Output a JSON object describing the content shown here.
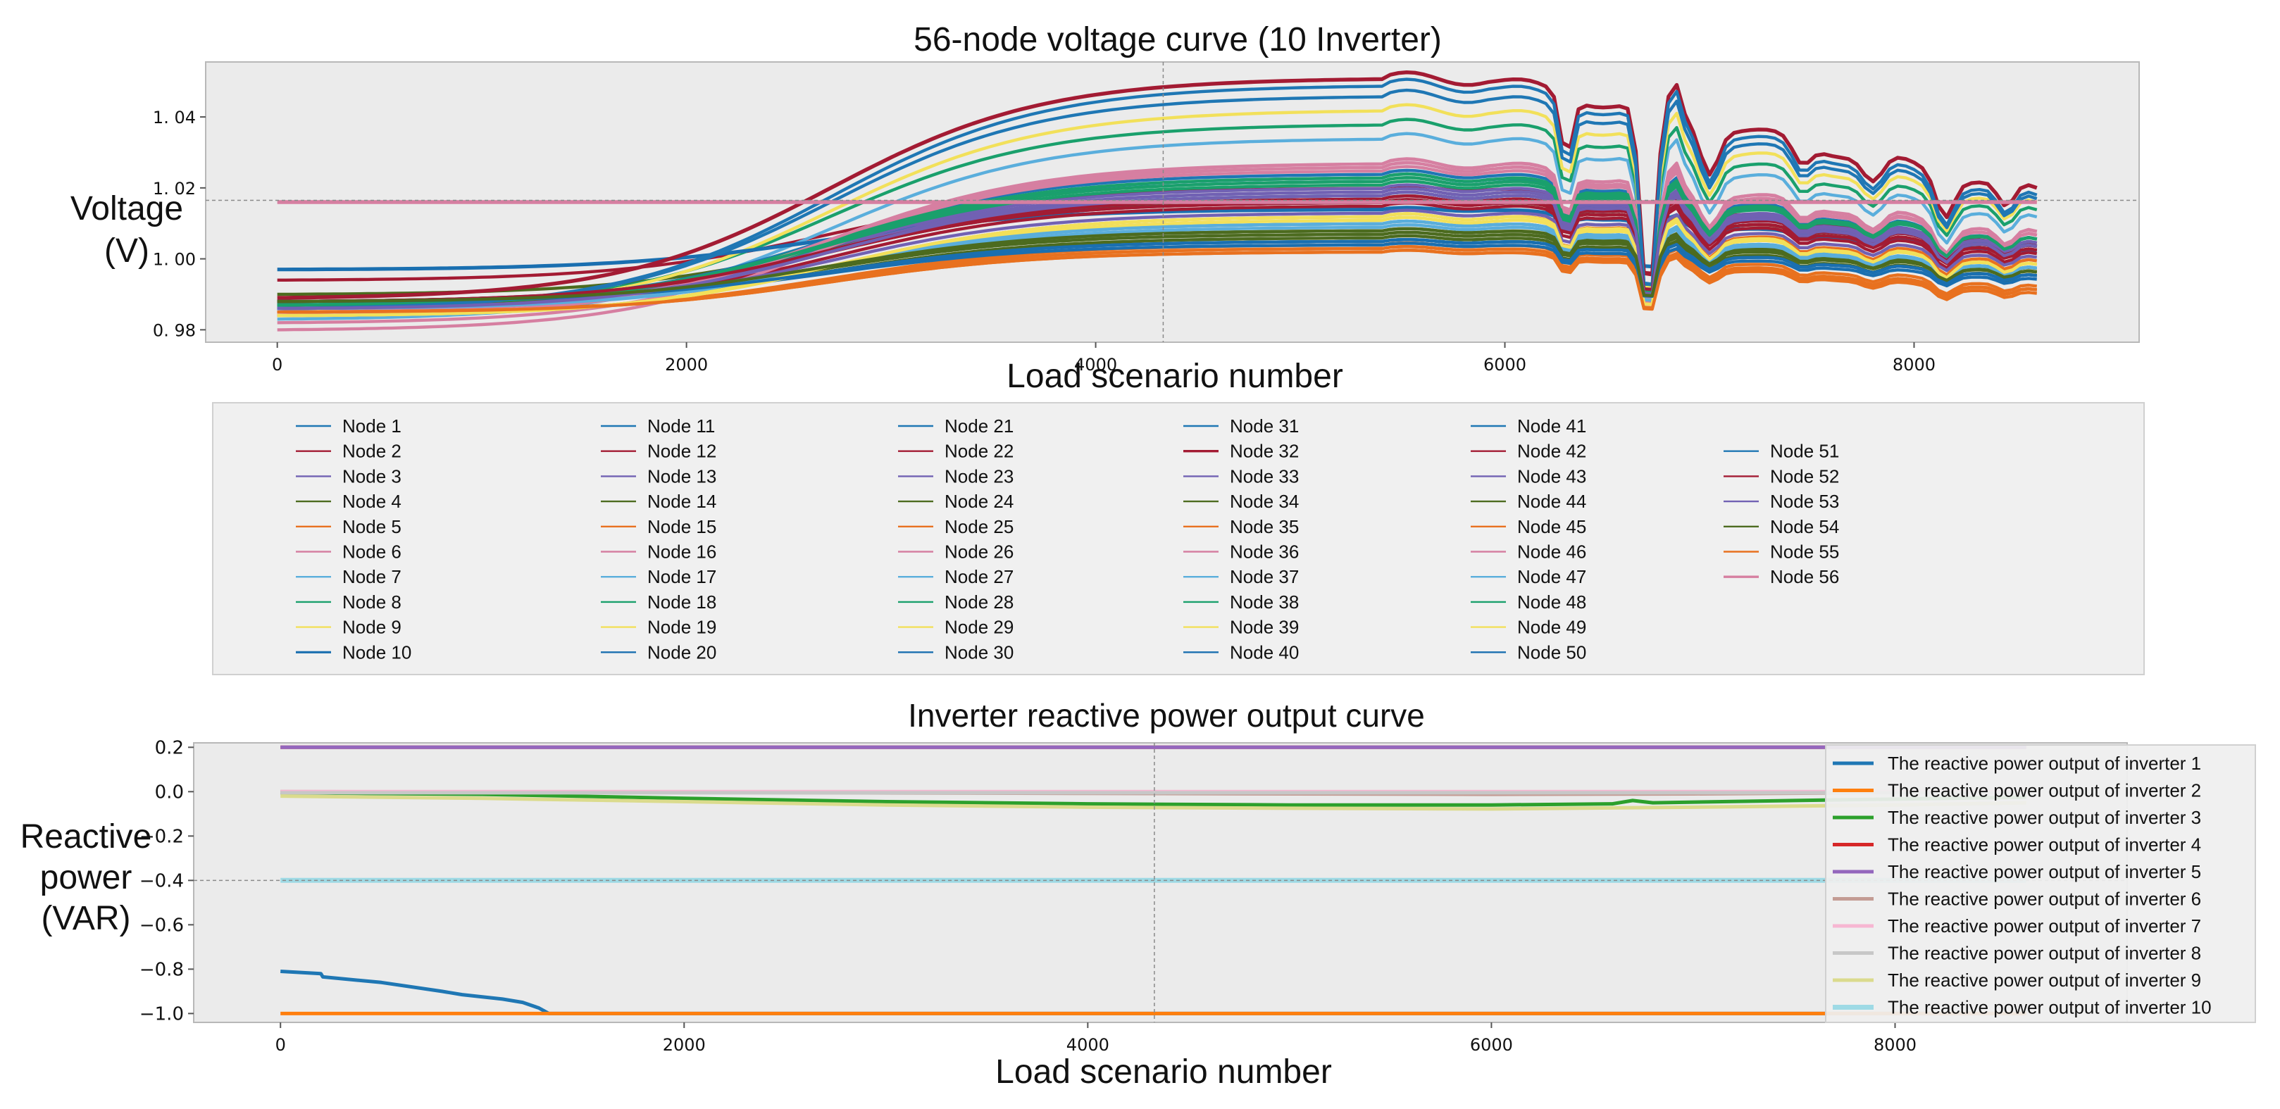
{
  "chart_data": [
    {
      "type": "line",
      "title": "56-node voltage curve (10 Inverter)",
      "xlabel": "Load scenario number",
      "ylabel": "Voltage (V)",
      "ylabel_lines": [
        "Voltage",
        "(V)"
      ],
      "xlim": [
        -350,
        9100
      ],
      "ylim": [
        0.9765,
        1.0555
      ],
      "xticks": [
        0,
        2000,
        4000,
        6000,
        8000
      ],
      "xtick_labels": [
        "0",
        "2000",
        "4000",
        "6000",
        "8000"
      ],
      "yticks": [
        0.98,
        1.0,
        1.02,
        1.04
      ],
      "ytick_labels": [
        "0. 98",
        "1. 00",
        "1. 02",
        "1. 04"
      ],
      "crosshair": {
        "x": 4330,
        "y": 1.0165
      },
      "grid": false,
      "legend_position": "below-plot",
      "legend_columns": 6,
      "x": [
        0,
        500,
        1000,
        1500,
        2000,
        2500,
        3000,
        3500,
        4000,
        4500,
        5000,
        5500,
        5800,
        6000,
        6200,
        6300,
        6500,
        6700,
        6780,
        6900,
        7000,
        7200,
        7400,
        7600,
        7800,
        8000,
        8150,
        8300,
        8450,
        8600
      ],
      "series": [
        {
          "name": "Node 1",
          "v0": 0.986,
          "peak": 1.023,
          "end": 1.003,
          "color": "#1f77b4",
          "width": 2.4
        },
        {
          "name": "Node 2",
          "v0": 0.994,
          "peak": 1.02,
          "end": 1.004,
          "color": "#a31b33",
          "width": 2.4
        },
        {
          "name": "Node 3",
          "v0": 0.987,
          "peak": 1.019,
          "end": 1.003,
          "color": "#7161b3",
          "width": 2.4
        },
        {
          "name": "Node 4",
          "v0": 0.99,
          "peak": 1.016,
          "end": 1.002,
          "color": "#4c6b1f",
          "width": 2.4
        },
        {
          "name": "Node 5",
          "v0": 0.984,
          "peak": 1.012,
          "end": 0.999,
          "color": "#e8711f",
          "width": 2.4
        },
        {
          "name": "Node 6",
          "v0": 0.982,
          "peak": 1.026,
          "end": 1.006,
          "color": "#d67fa1",
          "width": 2.4
        },
        {
          "name": "Node 7",
          "v0": 0.983,
          "peak": 1.034,
          "end": 1.011,
          "color": "#5aaedc",
          "width": 2.4
        },
        {
          "name": "Node 8",
          "v0": 0.986,
          "peak": 1.038,
          "end": 1.013,
          "color": "#1aa06c",
          "width": 2.4
        },
        {
          "name": "Node 9",
          "v0": 0.985,
          "peak": 1.042,
          "end": 1.015,
          "color": "#f2e05a",
          "width": 2.4
        },
        {
          "name": "Node 10",
          "v0": 0.997,
          "peak": 1.014,
          "end": 1.002,
          "color": "#1a6fb0",
          "width": 3.2
        },
        {
          "name": "Node 11",
          "v0": 0.987,
          "peak": 1.018,
          "end": 1.003,
          "color": "#1f77b4",
          "width": 2.4
        },
        {
          "name": "Node 12",
          "v0": 0.986,
          "peak": 1.015,
          "end": 1.001,
          "color": "#a31b33",
          "width": 2.4
        },
        {
          "name": "Node 13",
          "v0": 0.987,
          "peak": 1.02,
          "end": 1.004,
          "color": "#7161b3",
          "width": 2.4
        },
        {
          "name": "Node 14",
          "v0": 0.988,
          "peak": 1.008,
          "end": 0.997,
          "color": "#4c6b1f",
          "width": 2.4
        },
        {
          "name": "Node 15",
          "v0": 0.985,
          "peak": 1.004,
          "end": 0.992,
          "color": "#e8711f",
          "width": 2.4
        },
        {
          "name": "Node 16",
          "v0": 0.98,
          "peak": 1.027,
          "end": 1.007,
          "color": "#d67fa1",
          "width": 2.4
        },
        {
          "name": "Node 17",
          "v0": 0.986,
          "peak": 1.01,
          "end": 0.997,
          "color": "#5aaedc",
          "width": 2.4
        },
        {
          "name": "Node 18",
          "v0": 0.987,
          "peak": 1.022,
          "end": 1.005,
          "color": "#1aa06c",
          "width": 2.4
        },
        {
          "name": "Node 19",
          "v0": 0.984,
          "peak": 1.011,
          "end": 0.998,
          "color": "#f2e05a",
          "width": 2.4
        },
        {
          "name": "Node 20",
          "v0": 0.988,
          "peak": 1.005,
          "end": 0.995,
          "color": "#1a6fb0",
          "width": 2.4
        },
        {
          "name": "Node 21",
          "v0": 0.987,
          "peak": 1.024,
          "end": 1.005,
          "color": "#1f77b4",
          "width": 2.4
        },
        {
          "name": "Node 22",
          "v0": 0.988,
          "peak": 1.016,
          "end": 1.002,
          "color": "#a31b33",
          "width": 2.4
        },
        {
          "name": "Node 23",
          "v0": 0.986,
          "peak": 1.013,
          "end": 1.0,
          "color": "#7161b3",
          "width": 2.4
        },
        {
          "name": "Node 24",
          "v0": 0.987,
          "peak": 1.006,
          "end": 0.995,
          "color": "#4c6b1f",
          "width": 2.4
        },
        {
          "name": "Node 25",
          "v0": 0.985,
          "peak": 1.003,
          "end": 0.991,
          "color": "#e8711f",
          "width": 2.4
        },
        {
          "name": "Node 26",
          "v0": 0.985,
          "peak": 1.025,
          "end": 1.006,
          "color": "#d67fa1",
          "width": 2.4
        },
        {
          "name": "Node 27",
          "v0": 0.986,
          "peak": 1.009,
          "end": 0.997,
          "color": "#5aaedc",
          "width": 2.4
        },
        {
          "name": "Node 28",
          "v0": 0.987,
          "peak": 1.021,
          "end": 1.005,
          "color": "#1aa06c",
          "width": 2.4
        },
        {
          "name": "Node 29",
          "v0": 0.984,
          "peak": 1.012,
          "end": 0.998,
          "color": "#f2e05a",
          "width": 2.4
        },
        {
          "name": "Node 30",
          "v0": 0.988,
          "peak": 1.004,
          "end": 0.994,
          "color": "#1a6fb0",
          "width": 2.4
        },
        {
          "name": "Node 31",
          "v0": 0.988,
          "peak": 1.017,
          "end": 1.003,
          "color": "#1f77b4",
          "width": 2.4
        },
        {
          "name": "Node 32",
          "v0": 0.989,
          "peak": 1.051,
          "end": 1.019,
          "color": "#a31b33",
          "width": 3.4
        },
        {
          "name": "Node 33",
          "v0": 0.986,
          "peak": 1.018,
          "end": 1.003,
          "color": "#7161b3",
          "width": 2.4
        },
        {
          "name": "Node 34",
          "v0": 0.988,
          "peak": 1.007,
          "end": 0.996,
          "color": "#4c6b1f",
          "width": 2.4
        },
        {
          "name": "Node 35",
          "v0": 0.985,
          "peak": 1.002,
          "end": 0.991,
          "color": "#e8711f",
          "width": 2.4
        },
        {
          "name": "Node 36",
          "v0": 0.984,
          "peak": 1.026,
          "end": 1.006,
          "color": "#d67fa1",
          "width": 2.4
        },
        {
          "name": "Node 37",
          "v0": 0.986,
          "peak": 1.01,
          "end": 0.997,
          "color": "#5aaedc",
          "width": 2.4
        },
        {
          "name": "Node 38",
          "v0": 0.987,
          "peak": 1.023,
          "end": 1.005,
          "color": "#1aa06c",
          "width": 2.4
        },
        {
          "name": "Node 39",
          "v0": 0.984,
          "peak": 1.011,
          "end": 0.998,
          "color": "#f2e05a",
          "width": 2.4
        },
        {
          "name": "Node 40",
          "v0": 0.988,
          "peak": 1.005,
          "end": 0.995,
          "color": "#1a6fb0",
          "width": 2.4
        },
        {
          "name": "Node 41",
          "v0": 0.986,
          "peak": 1.046,
          "end": 1.016,
          "color": "#1f77b4",
          "width": 2.4
        },
        {
          "name": "Node 42",
          "v0": 0.988,
          "peak": 1.016,
          "end": 1.002,
          "color": "#a31b33",
          "width": 2.4
        },
        {
          "name": "Node 43",
          "v0": 0.986,
          "peak": 1.019,
          "end": 1.004,
          "color": "#7161b3",
          "width": 2.4
        },
        {
          "name": "Node 44",
          "v0": 0.988,
          "peak": 1.007,
          "end": 0.996,
          "color": "#4c6b1f",
          "width": 2.4
        },
        {
          "name": "Node 45",
          "v0": 0.985,
          "peak": 1.003,
          "end": 0.991,
          "color": "#e8711f",
          "width": 2.4
        },
        {
          "name": "Node 46",
          "v0": 0.984,
          "peak": 1.027,
          "end": 1.007,
          "color": "#d67fa1",
          "width": 2.4
        },
        {
          "name": "Node 47",
          "v0": 0.986,
          "peak": 1.01,
          "end": 0.997,
          "color": "#5aaedc",
          "width": 2.4
        },
        {
          "name": "Node 48",
          "v0": 0.987,
          "peak": 1.022,
          "end": 1.005,
          "color": "#1aa06c",
          "width": 2.4
        },
        {
          "name": "Node 49",
          "v0": 0.984,
          "peak": 1.012,
          "end": 0.998,
          "color": "#f2e05a",
          "width": 2.4
        },
        {
          "name": "Node 50",
          "v0": 0.988,
          "peak": 1.005,
          "end": 0.995,
          "color": "#1a6fb0",
          "width": 2.4
        },
        {
          "name": "Node 51",
          "v0": 0.986,
          "peak": 1.049,
          "end": 1.017,
          "color": "#1f77b4",
          "width": 2.4
        },
        {
          "name": "Node 52",
          "v0": 0.988,
          "peak": 1.017,
          "end": 1.003,
          "color": "#a31b33",
          "width": 2.4
        },
        {
          "name": "Node 53",
          "v0": 0.986,
          "peak": 1.018,
          "end": 1.003,
          "color": "#7161b3",
          "width": 2.4
        },
        {
          "name": "Node 54",
          "v0": 0.988,
          "peak": 1.008,
          "end": 0.996,
          "color": "#4c6b1f",
          "width": 2.4
        },
        {
          "name": "Node 55",
          "v0": 0.985,
          "peak": 1.002,
          "end": 0.99,
          "color": "#e8711f",
          "width": 2.4
        },
        {
          "name": "Node 56",
          "v0": 1.016,
          "peak": 1.016,
          "end": 1.016,
          "color": "#d67fa1",
          "width": 3.4,
          "flat": true
        }
      ]
    },
    {
      "type": "line",
      "title": "Inverter reactive power output curve",
      "xlabel": "Load scenario number",
      "ylabel": "Reactive power (VAR)",
      "ylabel_lines": [
        "Reactive",
        "power",
        "(VAR)"
      ],
      "xlim": [
        -430,
        9150
      ],
      "ylim": [
        -1.04,
        0.22
      ],
      "xticks": [
        0,
        2000,
        4000,
        6000,
        8000
      ],
      "xtick_labels": [
        "0",
        "2000",
        "4000",
        "6000",
        "8000"
      ],
      "yticks": [
        0.2,
        0.0,
        -0.2,
        -0.4,
        -0.6,
        -0.8,
        -1.0
      ],
      "ytick_labels": [
        "0.2",
        "0.0",
        "−0.2",
        "−0.4",
        "−0.6",
        "−0.8",
        "−1.0"
      ],
      "crosshair": {
        "x": 4330,
        "y": -0.4
      },
      "grid": false,
      "legend_position": "right",
      "series": [
        {
          "name": "The reactive power output of inverter 1",
          "color": "#1f77b4",
          "width": 5,
          "x": [
            0,
            200,
            210,
            500,
            800,
            900,
            1100,
            1200,
            1280,
            1300,
            1330,
            1400,
            8650
          ],
          "y": [
            -0.81,
            -0.82,
            -0.835,
            -0.86,
            -0.9,
            -0.915,
            -0.935,
            -0.95,
            -0.975,
            -0.985,
            -1.0,
            -1.0,
            -1.0
          ]
        },
        {
          "name": "The reactive power output of inverter 2",
          "color": "#ff7f0e",
          "width": 5,
          "x": [
            0,
            8650
          ],
          "y": [
            -1.0,
            -1.0
          ]
        },
        {
          "name": "The reactive power output of inverter 3",
          "color": "#2ca02c",
          "width": 5,
          "x": [
            0,
            1000,
            2000,
            3000,
            4000,
            5000,
            6000,
            6600,
            6700,
            6800,
            7500,
            8650
          ],
          "y": [
            -0.005,
            -0.012,
            -0.03,
            -0.045,
            -0.055,
            -0.06,
            -0.06,
            -0.055,
            -0.04,
            -0.05,
            -0.04,
            -0.025
          ]
        },
        {
          "name": "The reactive power output of inverter 4",
          "color": "#d62728",
          "width": 5,
          "x": [
            0,
            8650
          ],
          "y": [
            0.2,
            0.2
          ]
        },
        {
          "name": "The reactive power output of inverter 5",
          "color": "#9467bd",
          "width": 5,
          "x": [
            0,
            8650
          ],
          "y": [
            0.2,
            0.2
          ]
        },
        {
          "name": "The reactive power output of inverter 6",
          "color": "#c49c94",
          "width": 5,
          "x": [
            0,
            2000,
            4000,
            6000,
            7000,
            8000,
            8650
          ],
          "y": [
            0.0,
            -0.003,
            -0.008,
            -0.012,
            -0.01,
            -0.004,
            0.0
          ]
        },
        {
          "name": "The reactive power output of inverter 7",
          "color": "#f7b6d2",
          "width": 5,
          "x": [
            0,
            8650
          ],
          "y": [
            0.0,
            0.0
          ]
        },
        {
          "name": "The reactive power output of inverter 8",
          "color": "#c7c7c7",
          "width": 5,
          "x": [
            0,
            8650
          ],
          "y": [
            -0.005,
            -0.005
          ]
        },
        {
          "name": "The reactive power output of inverter 9",
          "color": "#dbdb8d",
          "width": 5,
          "x": [
            0,
            1000,
            2000,
            3000,
            4000,
            5000,
            6000,
            7000,
            8000,
            8650
          ],
          "y": [
            -0.02,
            -0.03,
            -0.045,
            -0.06,
            -0.07,
            -0.075,
            -0.078,
            -0.07,
            -0.06,
            -0.05
          ]
        },
        {
          "name": "The reactive power output of inverter 10",
          "color": "#9edae5",
          "width": 7,
          "x": [
            0,
            8650
          ],
          "y": [
            -0.4,
            -0.4
          ]
        }
      ]
    }
  ]
}
